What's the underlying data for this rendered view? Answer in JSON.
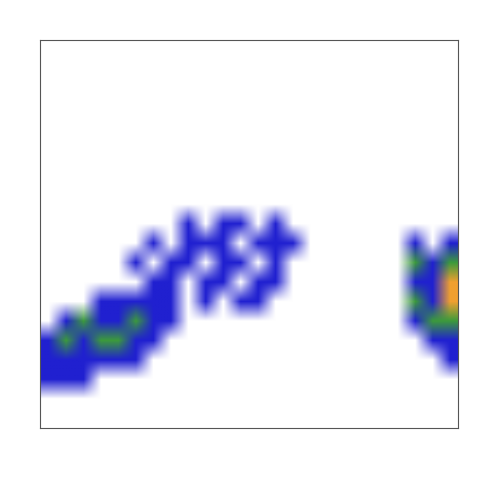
{
  "chart_data": {
    "type": "heatmap",
    "tick_labels": false,
    "colors": [
      "#ffffff",
      "#2020d0",
      "#3c9a3c",
      "#f0a030"
    ],
    "cells": [
      [
        0,
        0,
        0,
        0,
        0,
        0,
        0,
        0,
        0,
        0,
        0,
        0,
        0,
        0,
        0,
        0,
        0,
        0,
        0,
        0,
        0,
        0,
        0,
        0
      ],
      [
        0,
        0,
        0,
        0,
        0,
        0,
        0,
        0,
        0,
        0,
        0,
        0,
        0,
        0,
        0,
        0,
        0,
        0,
        0,
        0,
        0,
        0,
        0,
        0
      ],
      [
        0,
        0,
        0,
        0,
        0,
        0,
        0,
        0,
        0,
        0,
        0,
        0,
        0,
        0,
        0,
        0,
        0,
        0,
        0,
        0,
        0,
        0,
        0,
        0
      ],
      [
        0,
        0,
        0,
        0,
        0,
        0,
        0,
        0,
        0,
        0,
        0,
        0,
        0,
        0,
        0,
        0,
        0,
        0,
        0,
        0,
        0,
        0,
        0,
        0
      ],
      [
        0,
        0,
        0,
        0,
        0,
        0,
        0,
        0,
        0,
        0,
        0,
        0,
        0,
        0,
        0,
        0,
        0,
        0,
        0,
        0,
        0,
        0,
        0,
        0
      ],
      [
        0,
        0,
        0,
        0,
        0,
        0,
        0,
        0,
        0,
        0,
        0,
        0,
        0,
        0,
        0,
        0,
        0,
        0,
        0,
        0,
        0,
        0,
        0,
        0
      ],
      [
        0,
        0,
        0,
        0,
        0,
        0,
        0,
        0,
        0,
        0,
        0,
        0,
        0,
        0,
        0,
        0,
        0,
        0,
        0,
        0,
        0,
        0,
        0,
        0
      ],
      [
        0,
        0,
        0,
        0,
        0,
        0,
        0,
        0,
        0,
        0,
        0,
        0,
        0,
        0,
        0,
        0,
        0,
        0,
        0,
        0,
        0,
        0,
        0,
        0
      ],
      [
        0,
        0,
        0,
        0,
        0,
        0,
        0,
        0,
        0,
        0,
        0,
        0,
        0,
        0,
        0,
        0,
        0,
        0,
        0,
        0,
        0,
        0,
        0,
        0
      ],
      [
        0,
        0,
        0,
        0,
        0,
        0,
        0,
        0,
        1,
        0,
        1,
        1,
        0,
        1,
        0,
        0,
        0,
        0,
        0,
        0,
        0,
        0,
        0,
        0
      ],
      [
        0,
        0,
        0,
        0,
        0,
        0,
        1,
        0,
        1,
        1,
        1,
        0,
        1,
        1,
        1,
        0,
        0,
        0,
        0,
        0,
        0,
        1,
        0,
        1
      ],
      [
        0,
        0,
        0,
        0,
        0,
        1,
        0,
        1,
        1,
        0,
        1,
        1,
        0,
        1,
        0,
        0,
        0,
        0,
        0,
        0,
        0,
        2,
        1,
        2
      ],
      [
        0,
        0,
        0,
        0,
        0,
        0,
        1,
        1,
        0,
        1,
        1,
        0,
        1,
        1,
        0,
        0,
        0,
        0,
        0,
        0,
        0,
        1,
        1,
        3
      ],
      [
        0,
        0,
        0,
        1,
        1,
        1,
        1,
        1,
        0,
        1,
        0,
        1,
        1,
        0,
        0,
        0,
        0,
        0,
        0,
        0,
        0,
        2,
        1,
        3
      ],
      [
        0,
        1,
        2,
        1,
        1,
        2,
        1,
        1,
        0,
        0,
        0,
        0,
        0,
        0,
        0,
        0,
        0,
        0,
        0,
        0,
        0,
        1,
        2,
        2
      ],
      [
        1,
        2,
        1,
        2,
        2,
        1,
        1,
        0,
        0,
        0,
        0,
        0,
        0,
        0,
        0,
        0,
        0,
        0,
        0,
        0,
        0,
        0,
        1,
        1
      ],
      [
        1,
        1,
        1,
        1,
        1,
        1,
        0,
        0,
        0,
        0,
        0,
        0,
        0,
        0,
        0,
        0,
        0,
        0,
        0,
        0,
        0,
        0,
        0,
        1
      ],
      [
        1,
        1,
        1,
        0,
        0,
        0,
        0,
        0,
        0,
        0,
        0,
        0,
        0,
        0,
        0,
        0,
        0,
        0,
        0,
        0,
        0,
        0,
        0,
        0
      ],
      [
        0,
        0,
        0,
        0,
        0,
        0,
        0,
        0,
        0,
        0,
        0,
        0,
        0,
        0,
        0,
        0,
        0,
        0,
        0,
        0,
        0,
        0,
        0,
        0
      ],
      [
        0,
        0,
        0,
        0,
        0,
        0,
        0,
        0,
        0,
        0,
        0,
        0,
        0,
        0,
        0,
        0,
        0,
        0,
        0,
        0,
        0,
        0,
        0,
        0
      ]
    ]
  }
}
